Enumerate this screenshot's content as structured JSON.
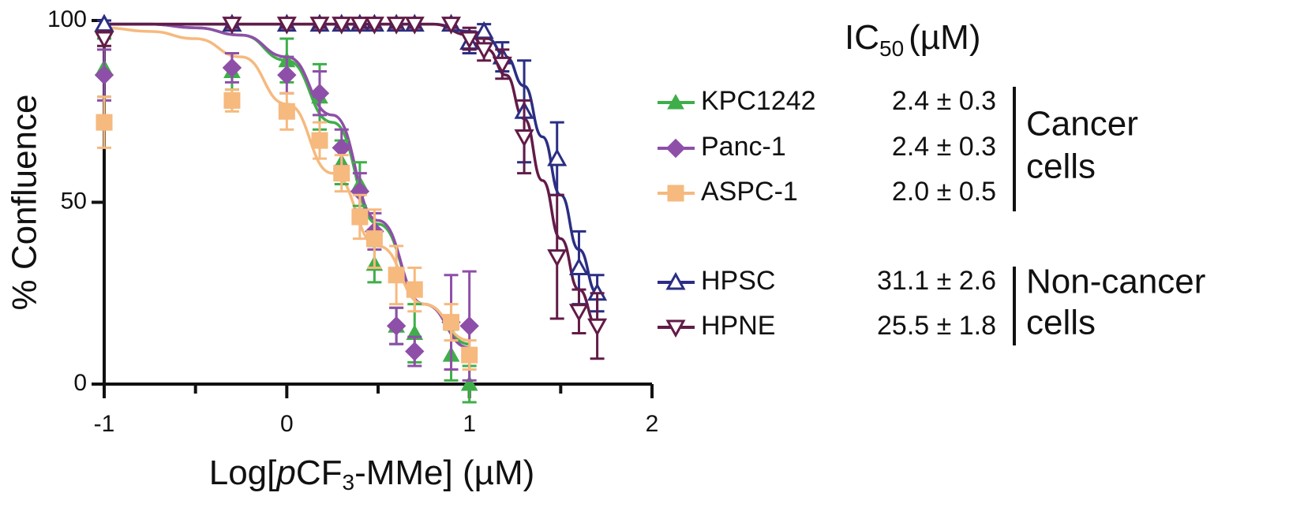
{
  "chart_data": {
    "type": "scatter",
    "x_label": [
      "Log[",
      "p",
      "CF",
      "3",
      "-MMe] (µM)"
    ],
    "y_label": "% Confluence",
    "xlim": [
      -1,
      2
    ],
    "ylim": [
      0,
      100
    ],
    "xticks": [
      -1,
      0,
      1,
      2
    ],
    "xminorticks": [
      -0.5,
      0.5,
      1.5
    ],
    "yticks": [
      0,
      50,
      100
    ],
    "legend_header": [
      "IC",
      "50",
      "(µM)"
    ],
    "groups": [
      {
        "lines": [
          "Cancer",
          "cells"
        ]
      },
      {
        "lines": [
          "Non-cancer",
          "cells"
        ]
      }
    ],
    "series": [
      {
        "name": "KPC1242",
        "ic50": "2.4 ± 0.3",
        "color": "#3fae49",
        "marker": "triangle",
        "x": [
          -1,
          -0.3,
          0,
          0.18,
          0.3,
          0.4,
          0.48,
          0.6,
          0.7,
          0.9,
          1.0
        ],
        "values": [
          87,
          86,
          89,
          79,
          61,
          55,
          33,
          16,
          14,
          8,
          0
        ],
        "errors": [
          8,
          5,
          6,
          9,
          6,
          6,
          5,
          5,
          8,
          7,
          5
        ],
        "fit_x": [
          -1,
          -0.75,
          -0.5,
          -0.25,
          0,
          0.25,
          0.5,
          0.75,
          1
        ],
        "fit_values": [
          99,
          99,
          98,
          96,
          89,
          72,
          44,
          22,
          11
        ]
      },
      {
        "name": "Panc-1",
        "ic50": "2.4 ± 0.3",
        "color": "#8e4fa8",
        "marker": "diamond",
        "x": [
          -1,
          -0.3,
          0,
          0.18,
          0.3,
          0.4,
          0.48,
          0.6,
          0.7,
          0.9,
          1.0
        ],
        "values": [
          85,
          87,
          85,
          80,
          65,
          53,
          42,
          16,
          9,
          17,
          16
        ],
        "errors": [
          7,
          4,
          5,
          6,
          5,
          5,
          5,
          5,
          4,
          13,
          15
        ],
        "fit_x": [
          -1,
          -0.75,
          -0.5,
          -0.25,
          0,
          0.25,
          0.5,
          0.75,
          1
        ],
        "fit_values": [
          99,
          99,
          98,
          96,
          90,
          74,
          45,
          22,
          10
        ]
      },
      {
        "name": "ASPC-1",
        "ic50": "2.0 ± 0.5",
        "color": "#f6b97e",
        "marker": "square",
        "x": [
          -1,
          -0.3,
          0,
          0.18,
          0.3,
          0.4,
          0.48,
          0.6,
          0.7,
          0.9,
          1.0
        ],
        "values": [
          72,
          78,
          75,
          67,
          58,
          46,
          40,
          30,
          26,
          17,
          8
        ],
        "errors": [
          7,
          3,
          5,
          5,
          5,
          6,
          8,
          8,
          6,
          5,
          4
        ],
        "fit_x": [
          -1,
          -0.75,
          -0.5,
          -0.25,
          0,
          0.25,
          0.5,
          0.75,
          1
        ],
        "fit_values": [
          98,
          97,
          95,
          90,
          77,
          58,
          38,
          22,
          12
        ]
      },
      {
        "name": "HPSC",
        "ic50": "31.1 ± 2.6",
        "color": "#2b2e83",
        "marker": "triangle-open",
        "x": [
          -1,
          -0.3,
          0,
          0.18,
          0.3,
          0.4,
          0.48,
          0.6,
          0.7,
          0.9,
          1.0,
          1.08,
          1.18,
          1.3,
          1.48,
          1.6,
          1.7
        ],
        "values": [
          99,
          99,
          99,
          99,
          99,
          99,
          99,
          99,
          99,
          99,
          94,
          97,
          90,
          75,
          62,
          32,
          25
        ],
        "errors": [
          1,
          1,
          1,
          1,
          1,
          1,
          1,
          1,
          1,
          1,
          3,
          2,
          4,
          14,
          10,
          10,
          5
        ],
        "fit_x": [
          -1,
          0,
          0.5,
          0.8,
          1.0,
          1.1,
          1.2,
          1.3,
          1.4,
          1.5,
          1.6,
          1.7
        ],
        "fit_values": [
          99,
          99,
          99,
          99,
          97,
          95,
          90,
          82,
          68,
          52,
          37,
          25
        ]
      },
      {
        "name": "HPNE",
        "ic50": "25.5 ± 1.8",
        "color": "#621b47",
        "marker": "triangle-down-open",
        "x": [
          -1,
          -0.3,
          0,
          0.18,
          0.3,
          0.4,
          0.48,
          0.6,
          0.7,
          0.9,
          1.0,
          1.08,
          1.18,
          1.3,
          1.48,
          1.6,
          1.7
        ],
        "values": [
          95,
          99,
          99,
          99,
          99,
          99,
          99,
          99,
          99,
          99,
          95,
          92,
          88,
          68,
          35,
          20,
          16
        ],
        "errors": [
          2,
          1,
          1,
          1,
          1,
          1,
          1,
          1,
          1,
          1,
          3,
          3,
          4,
          10,
          17,
          6,
          9
        ],
        "fit_x": [
          -1,
          0,
          0.5,
          0.8,
          1.0,
          1.1,
          1.2,
          1.3,
          1.4,
          1.5,
          1.6,
          1.7
        ],
        "fit_values": [
          99,
          99,
          99,
          99,
          96,
          92,
          85,
          73,
          56,
          40,
          26,
          16
        ]
      }
    ]
  }
}
